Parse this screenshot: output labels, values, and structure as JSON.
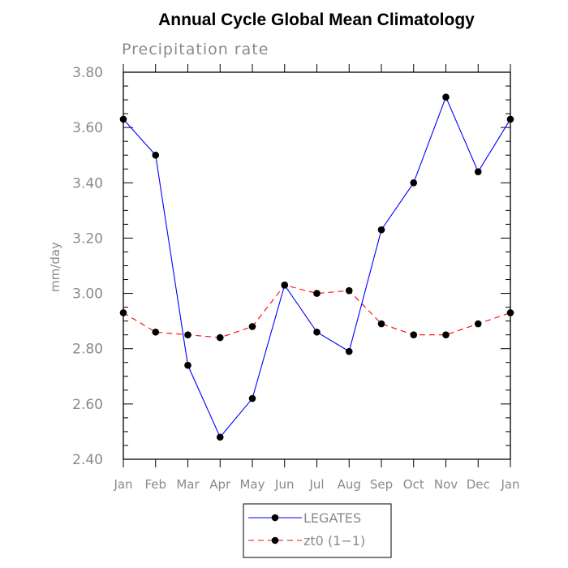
{
  "chart_data": {
    "type": "line",
    "title": "Annual Cycle Global Mean Climatology",
    "subtitle": "Precipitation rate",
    "xlabel": "",
    "ylabel": "mm/day",
    "categories": [
      "Jan",
      "Feb",
      "Mar",
      "Apr",
      "May",
      "Jun",
      "Jul",
      "Aug",
      "Sep",
      "Oct",
      "Nov",
      "Dec",
      "Jan"
    ],
    "ylim": [
      2.4,
      3.8
    ],
    "yticks": [
      "2.40",
      "2.60",
      "2.80",
      "3.00",
      "3.20",
      "3.40",
      "3.60",
      "3.80"
    ],
    "grid": false,
    "legend_position": "bottom-center",
    "series": [
      {
        "name": "LEGATES",
        "color": "#0000ff",
        "line_style": "solid",
        "marker": "filled-circle",
        "values": [
          3.63,
          3.5,
          2.74,
          2.48,
          2.62,
          3.03,
          2.86,
          2.79,
          3.23,
          3.4,
          3.71,
          3.44,
          3.63
        ]
      },
      {
        "name": "zt0 (1−1)",
        "color": "#ff0000",
        "line_style": "dashed",
        "marker": "filled-circle",
        "values": [
          2.93,
          2.86,
          2.85,
          2.84,
          2.88,
          3.03,
          3.0,
          3.01,
          2.89,
          2.85,
          2.85,
          2.89,
          2.93
        ]
      }
    ]
  }
}
